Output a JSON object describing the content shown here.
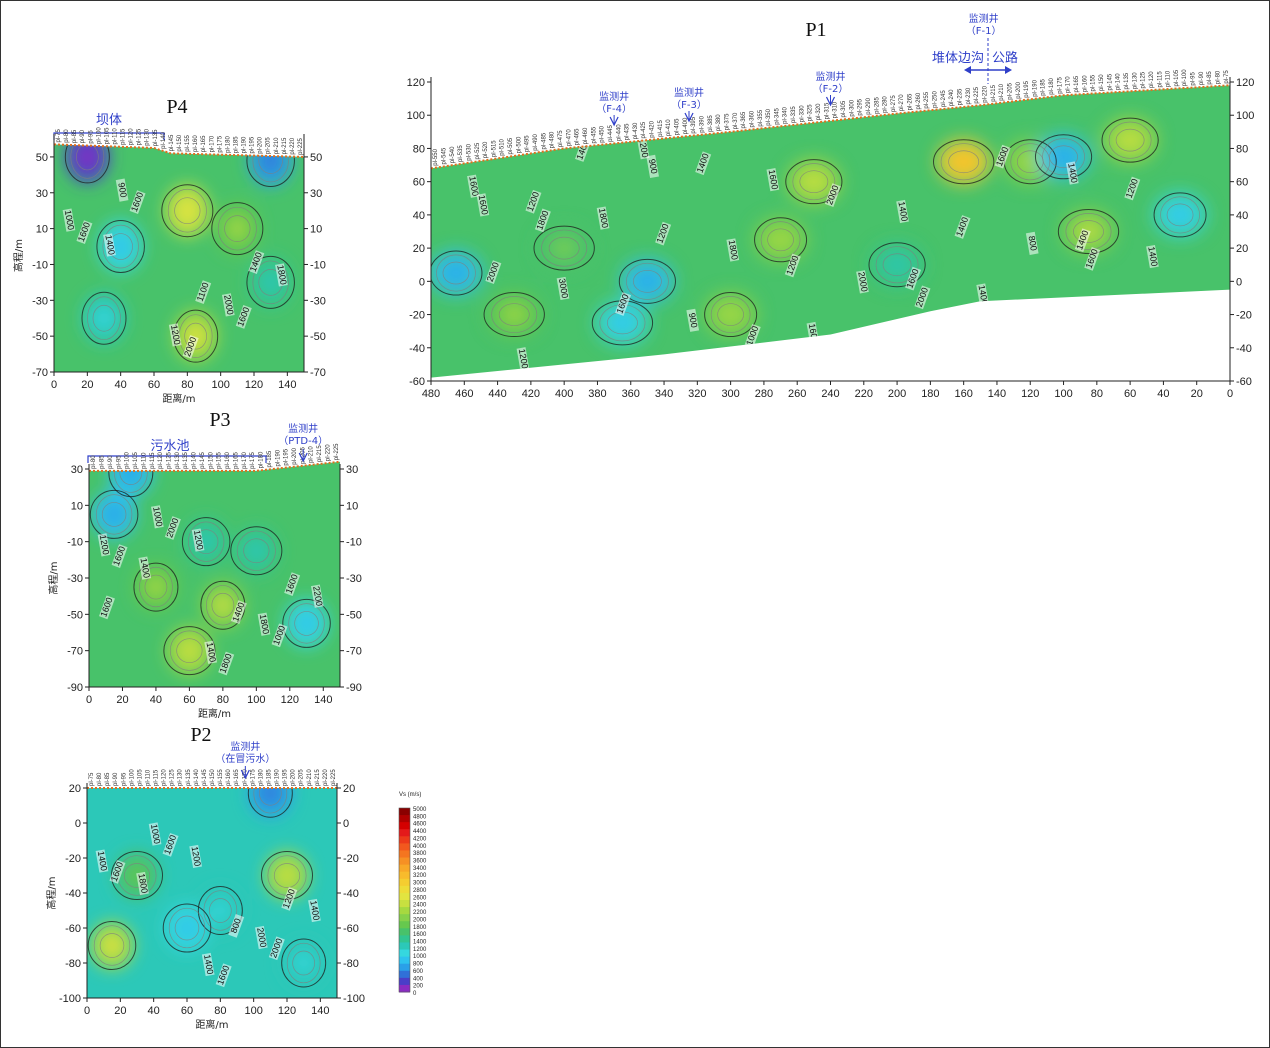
{
  "chart_data": [
    {
      "type": "heatmap",
      "id": "P1",
      "title": "P1",
      "xlabel": "",
      "ylabel": "",
      "xlim": [
        480,
        0
      ],
      "ylim": [
        -60,
        120
      ],
      "xticks": [
        "480",
        "460",
        "440",
        "420",
        "400",
        "380",
        "360",
        "340",
        "320",
        "300",
        "280",
        "260",
        "240",
        "220",
        "200",
        "180",
        "160",
        "140",
        "120",
        "100",
        "80",
        "60",
        "40",
        "20",
        "0"
      ],
      "yticks_left": [
        "120",
        "100",
        "80",
        "60",
        "40",
        "20",
        "0",
        "-20",
        "-40",
        "-60"
      ],
      "yticks_right": [
        "120",
        "100",
        "80",
        "60",
        "40",
        "20",
        "0",
        "-20",
        "-40",
        "-60"
      ],
      "surface": [
        [
          480,
          68
        ],
        [
          400,
          80
        ],
        [
          300,
          90
        ],
        [
          200,
          101
        ],
        [
          150,
          106
        ],
        [
          100,
          112
        ],
        [
          0,
          118
        ]
      ],
      "bottom": [
        [
          480,
          -58
        ],
        [
          400,
          -50
        ],
        [
          340,
          -44
        ],
        [
          240,
          -32
        ],
        [
          180,
          -18
        ],
        [
          150,
          -12
        ],
        [
          0,
          -5
        ]
      ],
      "blobs": [
        {
          "x": 465,
          "y": 5,
          "v": 900
        },
        {
          "x": 350,
          "y": 0,
          "v": 800
        },
        {
          "x": 365,
          "y": -25,
          "v": 1000
        },
        {
          "x": 300,
          "y": -20,
          "v": 2000
        },
        {
          "x": 250,
          "y": 60,
          "v": 2200
        },
        {
          "x": 160,
          "y": 72,
          "v": 3000
        },
        {
          "x": 120,
          "y": 72,
          "v": 2000
        },
        {
          "x": 60,
          "y": 85,
          "v": 2200
        },
        {
          "x": 85,
          "y": 30,
          "v": 2100
        },
        {
          "x": 30,
          "y": 40,
          "v": 1000
        },
        {
          "x": 100,
          "y": 75,
          "v": 900
        },
        {
          "x": 430,
          "y": -20,
          "v": 1900
        },
        {
          "x": 270,
          "y": 25,
          "v": 2000
        },
        {
          "x": 200,
          "y": 10,
          "v": 1500
        },
        {
          "x": 400,
          "y": 20,
          "v": 1700
        }
      ],
      "contour_labels": [
        "1600",
        "1600",
        "1200",
        "1400",
        "1600",
        "1200",
        "1400",
        "1400",
        "1400",
        "1600",
        "1800",
        "1400",
        "1600",
        "2000",
        "1600",
        "1200",
        "1600",
        "2000",
        "3000",
        "1600",
        "1800",
        "1200",
        "1400",
        "1600",
        "1400",
        "1200",
        "1200",
        "1400",
        "900",
        "1200",
        "2000",
        "1400",
        "800",
        "1000",
        "1600",
        "2000",
        "900",
        "1600",
        "1400",
        "1800"
      ],
      "annotations": [
        {
          "label": "监测井",
          "sub": "（F-4）",
          "x": 370
        },
        {
          "label": "监测井",
          "sub": "（F-3）",
          "x": 325
        },
        {
          "label": "监测井",
          "sub": "（F-2）",
          "x": 240
        },
        {
          "label": "监测井",
          "sub": "（F-1）",
          "x": 148
        }
      ],
      "region_left": "堆体边沟",
      "region_right": "公路",
      "stations": [
        "pl-550",
        "pl-545",
        "pl-540",
        "pl-535",
        "pl-530",
        "pl-525",
        "pl-520",
        "pl-515",
        "pl-510",
        "pl-505",
        "pl-500",
        "pl-495",
        "pl-490",
        "pl-485",
        "pl-480",
        "pl-475",
        "pl-470",
        "pl-465",
        "pl-460",
        "pl-455",
        "pl-450",
        "pl-445",
        "pl-440",
        "pl-435",
        "pl-430",
        "pl-425",
        "pl-420",
        "pl-415",
        "pl-410",
        "pl-405",
        "pl-400",
        "pl-395",
        "pl-390",
        "pl-385",
        "pl-380",
        "pl-375",
        "pl-370",
        "pl-365",
        "pl-360",
        "pl-355",
        "pl-350",
        "pl-345",
        "pl-340",
        "pl-335",
        "pl-330",
        "pl-325",
        "pl-320",
        "pl-315",
        "pl-310",
        "pl-305",
        "pl-300",
        "pl-295",
        "pl-290",
        "pl-285",
        "pl-280",
        "pl-275",
        "pl-270",
        "pl-265",
        "pl-260",
        "pl-255",
        "pl-250",
        "pl-245",
        "pl-240",
        "pl-235",
        "pl-230",
        "pl-225",
        "pl-220",
        "pl-215",
        "pl-210",
        "pl-205",
        "pl-200",
        "pl-195",
        "pl-190",
        "pl-185",
        "pl-180",
        "pl-175",
        "pl-170",
        "pl-165",
        "pl-160",
        "pl-155",
        "pl-150",
        "pl-145",
        "pl-140",
        "pl-135",
        "pl-130",
        "pl-125",
        "pl-120",
        "pl-115",
        "pl-110",
        "pl-105",
        "pl-100",
        "pl-95",
        "pl-90",
        "pl-85",
        "pl-80",
        "pl-75"
      ]
    },
    {
      "type": "heatmap",
      "id": "P4",
      "title": "P4",
      "xlabel": "距离/m",
      "ylabel": "高程/m",
      "xlim": [
        0,
        150
      ],
      "ylim": [
        -70,
        60
      ],
      "xticks": [
        "0",
        "20",
        "40",
        "60",
        "80",
        "100",
        "120",
        "140"
      ],
      "yticks_left": [
        "50",
        "30",
        "10",
        "-10",
        "-30",
        "-50",
        "-70"
      ],
      "yticks_right": [
        "50",
        "30",
        "10",
        "-10",
        "-30",
        "-50",
        "-70"
      ],
      "surface": [
        [
          0,
          57
        ],
        [
          60,
          55
        ],
        [
          70,
          52
        ],
        [
          150,
          50
        ]
      ],
      "bottom": [
        [
          0,
          -70
        ],
        [
          150,
          -70
        ]
      ],
      "blobs": [
        {
          "x": 20,
          "y": 50,
          "v": 300
        },
        {
          "x": 130,
          "y": 48,
          "v": 700
        },
        {
          "x": 80,
          "y": 20,
          "v": 2400
        },
        {
          "x": 85,
          "y": -50,
          "v": 2300
        },
        {
          "x": 40,
          "y": 0,
          "v": 1100
        },
        {
          "x": 110,
          "y": 10,
          "v": 1900
        },
        {
          "x": 30,
          "y": -40,
          "v": 1200
        },
        {
          "x": 130,
          "y": -20,
          "v": 1500
        }
      ],
      "contour_labels": [
        "1000",
        "1100",
        "900",
        "1400",
        "1200",
        "1600",
        "2000",
        "1600",
        "1800",
        "2000",
        "1400",
        "1600"
      ],
      "region": "坝体",
      "stations": [
        "pl-75",
        "pl-80",
        "pl-85",
        "pl-90",
        "pl-95",
        "pl-100",
        "pl-105",
        "pl-110",
        "pl-115",
        "pl-120",
        "pl-125",
        "pl-130",
        "pl-135",
        "pl-140",
        "pl-145",
        "pl-150",
        "pl-155",
        "pl-160",
        "pl-165",
        "pl-170",
        "pl-175",
        "pl-180",
        "pl-185",
        "pl-190",
        "pl-195",
        "pl-200",
        "pl-205",
        "pl-210",
        "pl-215",
        "pl-220",
        "pl-225"
      ]
    },
    {
      "type": "heatmap",
      "id": "P3",
      "title": "P3",
      "xlabel": "距离/m",
      "ylabel": "高程/m",
      "xlim": [
        0,
        150
      ],
      "ylim": [
        -90,
        30
      ],
      "xticks": [
        "0",
        "20",
        "40",
        "60",
        "80",
        "100",
        "120",
        "140"
      ],
      "yticks_left": [
        "30",
        "10",
        "-10",
        "-30",
        "-50",
        "-70",
        "-90"
      ],
      "yticks_right": [
        "30",
        "10",
        "-10",
        "-30",
        "-50",
        "-70",
        "-90"
      ],
      "surface": [
        [
          0,
          29
        ],
        [
          100,
          29
        ],
        [
          150,
          34
        ]
      ],
      "bottom": [
        [
          0,
          -90
        ],
        [
          150,
          -90
        ]
      ],
      "blobs": [
        {
          "x": 25,
          "y": 28,
          "v": 800
        },
        {
          "x": 15,
          "y": 5,
          "v": 900
        },
        {
          "x": 60,
          "y": -70,
          "v": 2200
        },
        {
          "x": 80,
          "y": -45,
          "v": 2100
        },
        {
          "x": 130,
          "y": -55,
          "v": 1000
        },
        {
          "x": 100,
          "y": -15,
          "v": 1400
        },
        {
          "x": 40,
          "y": -35,
          "v": 1900
        },
        {
          "x": 70,
          "y": -10,
          "v": 1500
        }
      ],
      "contour_labels": [
        "1200",
        "1400",
        "1000",
        "1600",
        "1400",
        "1600",
        "1800",
        "2000",
        "2200",
        "1800",
        "1400",
        "1000",
        "1200",
        "1600"
      ],
      "region": "污水池",
      "annotation": {
        "label": "监测井",
        "sub": "（PTD-4）",
        "x": 128
      },
      "stations": [
        "pl-80",
        "pl-85",
        "pl-90",
        "pl-95",
        "pl-100",
        "pl-105",
        "pl-110",
        "pl-115",
        "pl-120",
        "pl-125",
        "pl-130",
        "pl-135",
        "pl-140",
        "pl-145",
        "pl-150",
        "pl-155",
        "pl-160",
        "pl-165",
        "pl-170",
        "pl-175",
        "pl-180",
        "pl-185",
        "pl-190",
        "pl-195",
        "pl-200",
        "pl-205",
        "pl-210",
        "pl-215",
        "pl-220",
        "pl-225"
      ]
    },
    {
      "type": "heatmap",
      "id": "P2",
      "title": "P2",
      "xlabel": "距离/m",
      "ylabel": "高程/m",
      "xlim": [
        0,
        150
      ],
      "ylim": [
        -100,
        20
      ],
      "xticks": [
        "0",
        "20",
        "40",
        "60",
        "80",
        "100",
        "120",
        "140"
      ],
      "yticks_left": [
        "20",
        "0",
        "-20",
        "-40",
        "-60",
        "-80",
        "-100"
      ],
      "yticks_right": [
        "20",
        "0",
        "-20",
        "-40",
        "-60",
        "-80",
        "-100"
      ],
      "surface": [
        [
          0,
          20
        ],
        [
          150,
          20
        ]
      ],
      "bottom": [
        [
          0,
          -100
        ],
        [
          150,
          -100
        ]
      ],
      "blobs": [
        {
          "x": 110,
          "y": 17,
          "v": 700
        },
        {
          "x": 15,
          "y": -70,
          "v": 2300
        },
        {
          "x": 120,
          "y": -30,
          "v": 2200
        },
        {
          "x": 80,
          "y": -50,
          "v": 1300
        },
        {
          "x": 60,
          "y": -60,
          "v": 1100
        },
        {
          "x": 30,
          "y": -30,
          "v": 1600
        },
        {
          "x": 130,
          "y": -80,
          "v": 1200
        }
      ],
      "contour_labels": [
        "1400",
        "800",
        "1000",
        "1200",
        "1400",
        "1600",
        "2000",
        "1600",
        "1400",
        "1600",
        "1800",
        "2000",
        "1200"
      ],
      "annotation": {
        "label": "监测井",
        "sub": "（在冒污水）",
        "x": 95
      },
      "stations": [
        "pl-75",
        "pl-80",
        "pl-85",
        "pl-90",
        "pl-95",
        "pl-100",
        "pl-105",
        "pl-110",
        "pl-115",
        "pl-120",
        "pl-125",
        "pl-130",
        "pl-135",
        "pl-140",
        "pl-145",
        "pl-150",
        "pl-155",
        "pl-160",
        "pl-165",
        "pl-170",
        "pl-175",
        "pl-180",
        "pl-185",
        "pl-190",
        "pl-195",
        "pl-200",
        "pl-205",
        "pl-210",
        "pl-215",
        "pl-220",
        "pl-225"
      ]
    }
  ],
  "colorbar": {
    "title": "Vs (m/s)",
    "ticks": [
      "5000",
      "4800",
      "4600",
      "4400",
      "4200",
      "4000",
      "3800",
      "3600",
      "3400",
      "3200",
      "3000",
      "2800",
      "2600",
      "2400",
      "2200",
      "2000",
      "1800",
      "1600",
      "1400",
      "1200",
      "1000",
      "800",
      "600",
      "400",
      "200",
      "0"
    ],
    "colors": [
      "#8a0000",
      "#b00000",
      "#d40000",
      "#e41a1a",
      "#ec3a1a",
      "#f2581e",
      "#f47520",
      "#f69024",
      "#f8a828",
      "#f8bb2c",
      "#f5cd30",
      "#eedc38",
      "#e2e440",
      "#c8e040",
      "#a6d940",
      "#86d14a",
      "#66c84e",
      "#48c26a",
      "#32c590",
      "#2cc8b8",
      "#35d7df",
      "#2ec2ee",
      "#2aa0e8",
      "#3070d8",
      "#4a3ec8",
      "#8a2cc2"
    ]
  }
}
